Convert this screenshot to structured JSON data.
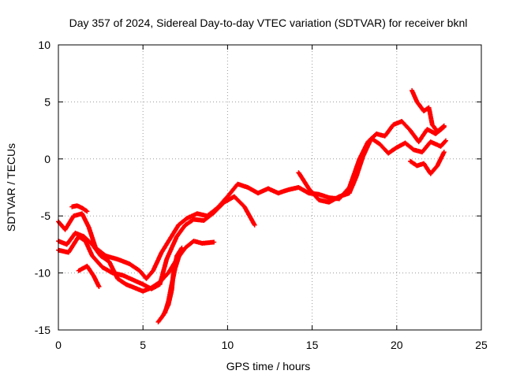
{
  "chart_data": {
    "type": "scatter",
    "title": "Day 357 of 2024, Sidereal Day-to-day VTEC variation (SDTVAR) for receiver bknl",
    "xlabel": "GPS time / hours",
    "ylabel": "SDTVAR / TECUs",
    "xlim": [
      0,
      25
    ],
    "ylim": [
      -15,
      10
    ],
    "xticks": [
      0,
      5,
      10,
      15,
      20,
      25
    ],
    "yticks": [
      -15,
      -10,
      -5,
      0,
      5,
      10
    ],
    "grid": true,
    "marker_color": "#ff0000",
    "series": [
      {
        "name": "track-a",
        "points": [
          [
            0,
            -5.5
          ],
          [
            0.4,
            -6.2
          ],
          [
            0.9,
            -5
          ],
          [
            1.4,
            -4.8
          ],
          [
            1.8,
            -6
          ],
          [
            2.2,
            -7.8
          ],
          [
            2.8,
            -8.5
          ],
          [
            3.5,
            -8.8
          ],
          [
            4.2,
            -9.2
          ],
          [
            4.8,
            -9.8
          ],
          [
            5.2,
            -10.5
          ],
          [
            5.6,
            -9.8
          ],
          [
            6.1,
            -8.2
          ],
          [
            6.6,
            -7
          ],
          [
            7.1,
            -5.8
          ],
          [
            7.6,
            -5.2
          ],
          [
            8.2,
            -4.8
          ],
          [
            8.8,
            -5
          ],
          [
            9.4,
            -4.3
          ],
          [
            10,
            -3.3
          ],
          [
            10.6,
            -2.2
          ],
          [
            11.2,
            -2.5
          ],
          [
            11.8,
            -3
          ],
          [
            12.4,
            -2.6
          ],
          [
            13,
            -3
          ],
          [
            13.6,
            -2.7
          ],
          [
            14.2,
            -2.5
          ],
          [
            14.8,
            -3
          ],
          [
            15.4,
            -3.1
          ],
          [
            16,
            -3.4
          ],
          [
            16.6,
            -3.5
          ],
          [
            17.2,
            -2.5
          ],
          [
            17.8,
            0
          ],
          [
            18.3,
            1.5
          ],
          [
            18.8,
            2.2
          ],
          [
            19.3,
            2
          ],
          [
            19.8,
            3
          ],
          [
            20.3,
            3.3
          ],
          [
            20.8,
            2.5
          ],
          [
            21.3,
            1.5
          ],
          [
            21.8,
            2.6
          ],
          [
            22.3,
            2.2
          ],
          [
            22.8,
            2.8
          ]
        ]
      },
      {
        "name": "track-b",
        "points": [
          [
            0,
            -7.2
          ],
          [
            0.5,
            -7.5
          ],
          [
            1,
            -6.5
          ],
          [
            1.5,
            -6.8
          ],
          [
            2,
            -7.5
          ],
          [
            2.5,
            -8.5
          ],
          [
            3,
            -9
          ],
          [
            3.5,
            -10.5
          ],
          [
            4,
            -11
          ],
          [
            4.5,
            -11.3
          ],
          [
            5,
            -11.6
          ],
          [
            5.5,
            -11.3
          ],
          [
            6,
            -10.8
          ],
          [
            6.5,
            -10
          ],
          [
            7,
            -8.8
          ],
          [
            7.5,
            -7.8
          ],
          [
            8,
            -7.2
          ],
          [
            8.5,
            -7.4
          ],
          [
            9.2,
            -7.3
          ]
        ]
      },
      {
        "name": "track-c",
        "points": [
          [
            0,
            -8
          ],
          [
            0.6,
            -8.2
          ],
          [
            1.2,
            -6.8
          ],
          [
            1.6,
            -7.2
          ],
          [
            2,
            -8.5
          ],
          [
            2.6,
            -9.5
          ],
          [
            3.2,
            -10
          ],
          [
            3.8,
            -10.2
          ],
          [
            4.4,
            -10.6
          ],
          [
            5,
            -11
          ],
          [
            5.5,
            -11.4
          ],
          [
            6,
            -11
          ],
          [
            6.4,
            -8.8
          ],
          [
            7,
            -6.8
          ],
          [
            7.5,
            -5.8
          ],
          [
            8,
            -5.3
          ],
          [
            8.6,
            -5.4
          ],
          [
            9.2,
            -4.7
          ],
          [
            9.8,
            -3.8
          ],
          [
            10.4,
            -3.3
          ],
          [
            11,
            -4.2
          ],
          [
            11.6,
            -5.8
          ]
        ]
      },
      {
        "name": "track-d",
        "points": [
          [
            0.8,
            -4.2
          ],
          [
            1.1,
            -4.1
          ],
          [
            1.4,
            -4.3
          ],
          [
            1.7,
            -4.6
          ]
        ]
      },
      {
        "name": "track-e",
        "points": [
          [
            1.2,
            -9.8
          ],
          [
            1.7,
            -9.4
          ],
          [
            2.1,
            -10.3
          ],
          [
            2.4,
            -11.2
          ]
        ]
      },
      {
        "name": "track-f",
        "points": [
          [
            5.9,
            -14.3
          ],
          [
            6.2,
            -13.7
          ],
          [
            6.5,
            -12.8
          ],
          [
            6.7,
            -11.5
          ],
          [
            6.8,
            -10
          ],
          [
            7,
            -8.5
          ],
          [
            7.3,
            -7.8
          ]
        ]
      },
      {
        "name": "track-g",
        "points": [
          [
            6.3,
            -13.5
          ],
          [
            6.5,
            -12.5
          ],
          [
            6.7,
            -11
          ],
          [
            6.9,
            -9.6
          ],
          [
            7.2,
            -8.2
          ]
        ]
      },
      {
        "name": "track-h",
        "points": [
          [
            14.2,
            -1.2
          ],
          [
            14.8,
            -2.6
          ],
          [
            15.4,
            -3.6
          ],
          [
            16,
            -3.8
          ],
          [
            16.6,
            -3.3
          ],
          [
            17.2,
            -3
          ],
          [
            17.6,
            -1.6
          ],
          [
            18,
            0.2
          ],
          [
            18.5,
            1.8
          ],
          [
            19,
            1.3
          ],
          [
            19.5,
            0.5
          ],
          [
            20,
            1
          ],
          [
            20.5,
            1.4
          ],
          [
            21,
            0.8
          ],
          [
            21.5,
            0.6
          ],
          [
            22,
            1.5
          ],
          [
            22.6,
            1.1
          ],
          [
            22.9,
            1.6
          ]
        ]
      },
      {
        "name": "track-i",
        "points": [
          [
            20.9,
            6
          ],
          [
            21.2,
            5
          ],
          [
            21.6,
            4.2
          ],
          [
            21.9,
            4.5
          ],
          [
            22.1,
            3
          ],
          [
            22.4,
            2.4
          ],
          [
            22.8,
            2.9
          ]
        ]
      },
      {
        "name": "track-j",
        "points": [
          [
            20.8,
            -0.2
          ],
          [
            21.2,
            -0.6
          ],
          [
            21.6,
            -0.4
          ],
          [
            22,
            -1.3
          ],
          [
            22.4,
            -0.6
          ],
          [
            22.8,
            0.6
          ]
        ]
      }
    ]
  }
}
